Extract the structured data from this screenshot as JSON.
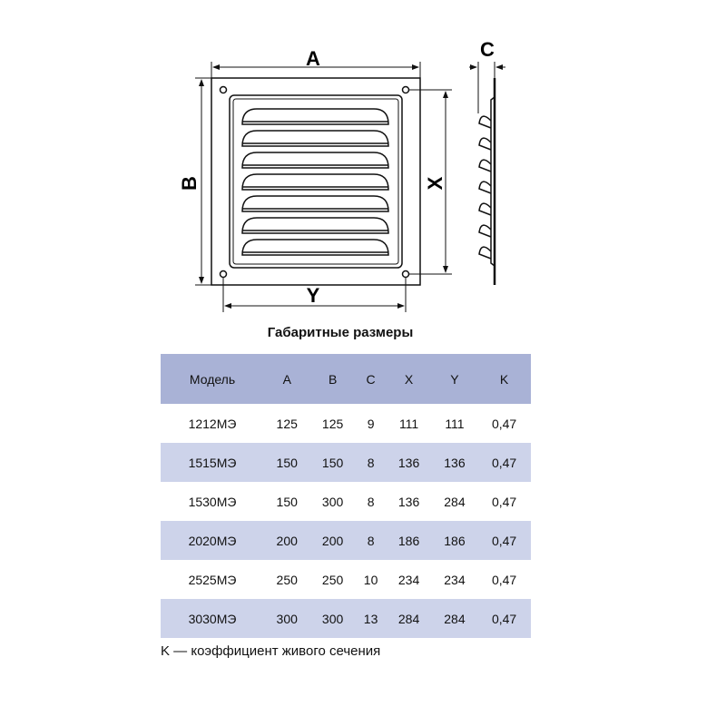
{
  "drawing": {
    "labels": {
      "A": "A",
      "B": "B",
      "C": "C",
      "X": "X",
      "Y": "Y"
    }
  },
  "table": {
    "title": "Габаритные размеры",
    "headers": [
      "Модель",
      "A",
      "B",
      "C",
      "X",
      "Y",
      "K"
    ],
    "rows": [
      [
        "1212МЭ",
        "125",
        "125",
        "9",
        "111",
        "111",
        "0,47"
      ],
      [
        "1515МЭ",
        "150",
        "150",
        "8",
        "136",
        "136",
        "0,47"
      ],
      [
        "1530МЭ",
        "150",
        "300",
        "8",
        "136",
        "284",
        "0,47"
      ],
      [
        "2020МЭ",
        "200",
        "200",
        "8",
        "186",
        "186",
        "0,47"
      ],
      [
        "2525МЭ",
        "250",
        "250",
        "10",
        "234",
        "234",
        "0,47"
      ],
      [
        "3030МЭ",
        "300",
        "300",
        "13",
        "284",
        "284",
        "0,47"
      ]
    ],
    "header_color": "#a9b2d6",
    "stripe_color": "#cdd3ea"
  },
  "footnote": "K — коэффициент живого сечения"
}
